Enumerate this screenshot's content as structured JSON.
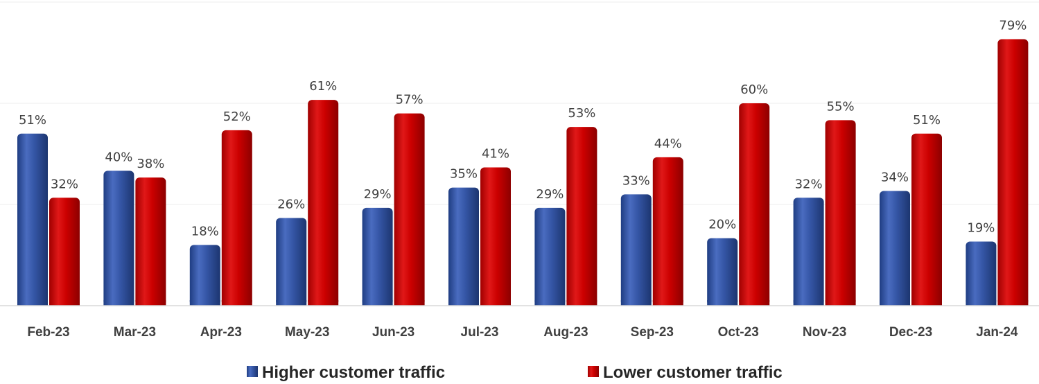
{
  "chart_data": {
    "type": "bar",
    "categories": [
      "Feb-23",
      "Mar-23",
      "Apr-23",
      "May-23",
      "Jun-23",
      "Jul-23",
      "Aug-23",
      "Sep-23",
      "Oct-23",
      "Nov-23",
      "Dec-23",
      "Jan-24"
    ],
    "series": [
      {
        "name": "Higher customer traffic",
        "values": [
          51,
          40,
          18,
          26,
          29,
          35,
          29,
          33,
          20,
          32,
          34,
          19
        ],
        "color": "#2f4f9a"
      },
      {
        "name": "Lower customer traffic",
        "values": [
          32,
          38,
          52,
          61,
          57,
          41,
          53,
          44,
          60,
          55,
          51,
          79
        ],
        "color": "#c00000"
      }
    ],
    "value_suffix": "%",
    "ylim": [
      0,
      90
    ],
    "grid": true,
    "legend_position": "bottom"
  }
}
